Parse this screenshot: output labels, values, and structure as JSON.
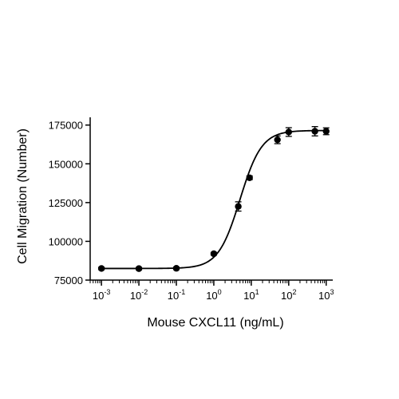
{
  "chart_data": {
    "type": "scatter",
    "title": "",
    "xlabel": "Mouse CXCL11 (ng/mL)",
    "ylabel": "Cell Migration (Number)",
    "x_scale": "log",
    "xlim": [
      0.0005,
      1500
    ],
    "ylim": [
      75000,
      180000
    ],
    "grid": false,
    "legend": "none",
    "x_ticks": [
      {
        "value": 0.001,
        "base": "10",
        "exp": "-3"
      },
      {
        "value": 0.01,
        "base": "10",
        "exp": "-2"
      },
      {
        "value": 0.1,
        "base": "10",
        "exp": "-1"
      },
      {
        "value": 1,
        "base": "10",
        "exp": "0"
      },
      {
        "value": 10,
        "base": "10",
        "exp": "1"
      },
      {
        "value": 100,
        "base": "10",
        "exp": "2"
      },
      {
        "value": 1000,
        "base": "10",
        "exp": "3"
      }
    ],
    "y_ticks": [
      {
        "value": 75000,
        "label": "75000"
      },
      {
        "value": 100000,
        "label": "100000"
      },
      {
        "value": 125000,
        "label": "125000"
      },
      {
        "value": 150000,
        "label": "150000"
      },
      {
        "value": 175000,
        "label": "175000"
      }
    ],
    "series": [
      {
        "points": [
          {
            "x": 0.001,
            "y": 82500,
            "err": 800
          },
          {
            "x": 0.01,
            "y": 82400,
            "err": 800
          },
          {
            "x": 0.1,
            "y": 82600,
            "err": 800
          },
          {
            "x": 1,
            "y": 92000,
            "err": 900
          },
          {
            "x": 4.5,
            "y": 122500,
            "err": 3000
          },
          {
            "x": 9,
            "y": 141000,
            "err": 1200
          },
          {
            "x": 50,
            "y": 165500,
            "err": 2500
          },
          {
            "x": 100,
            "y": 170500,
            "err": 2800
          },
          {
            "x": 500,
            "y": 171000,
            "err": 3000
          },
          {
            "x": 1000,
            "y": 171000,
            "err": 2200
          }
        ],
        "fit": {
          "bottom": 82500,
          "top": 171500,
          "ec50": 5.0,
          "hill": 1.5
        },
        "color": "#000000"
      }
    ]
  }
}
